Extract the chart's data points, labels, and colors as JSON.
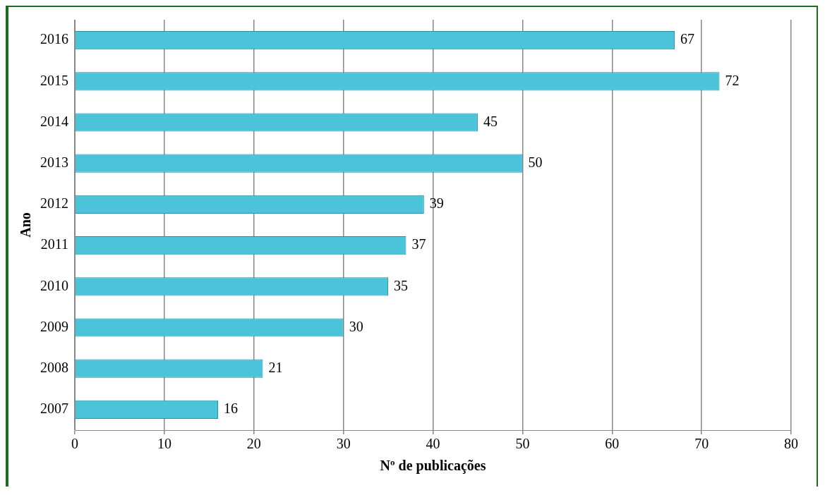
{
  "chart_data": {
    "type": "bar",
    "orientation": "horizontal",
    "xlabel": "Nº de publicações",
    "ylabel": "Ano",
    "categories": [
      "2016",
      "2015",
      "2014",
      "2013",
      "2012",
      "2011",
      "2010",
      "2009",
      "2008",
      "2007"
    ],
    "values": [
      67,
      72,
      45,
      50,
      39,
      37,
      35,
      30,
      21,
      16
    ],
    "color": "#4bc3d8",
    "xlim": [
      0,
      80
    ],
    "xticks": [
      0,
      10,
      20,
      30,
      40,
      50,
      60,
      70,
      80
    ],
    "grid": "x",
    "data_labels": true
  }
}
